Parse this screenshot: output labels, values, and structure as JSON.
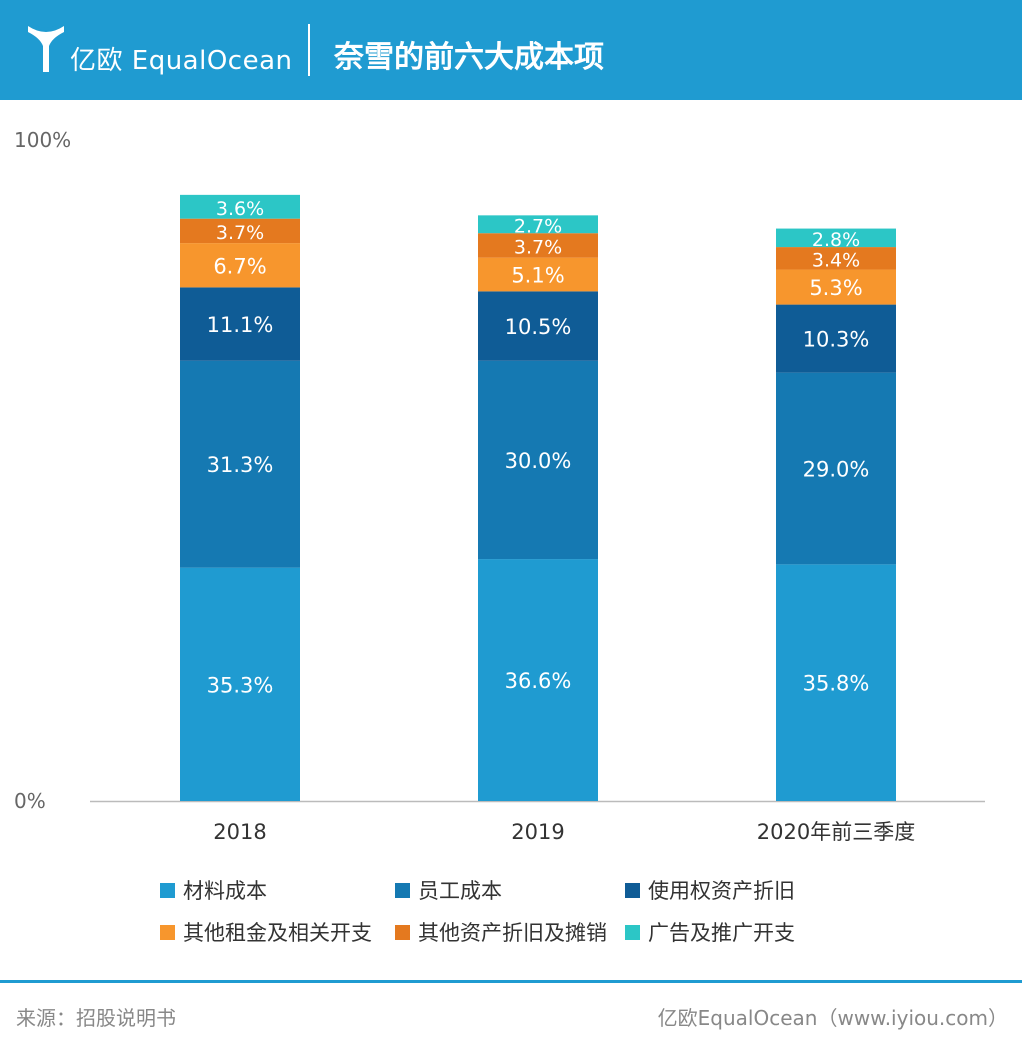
{
  "header": {
    "brand": "亿欧 EqualOcean",
    "title": "奈雪的前六大成本项"
  },
  "colors": {
    "header_bg": "#1f9bd1",
    "series": [
      "#1f9bd1",
      "#1579b2",
      "#0f5c96",
      "#f7962d",
      "#e4791f",
      "#2cc6c6"
    ]
  },
  "chart_data": {
    "type": "bar",
    "stacked": true,
    "categories": [
      "2018",
      "2019",
      "2020年前三季度"
    ],
    "ylim": [
      0,
      100
    ],
    "y_ticks": [
      "0%",
      "100%"
    ],
    "series": [
      {
        "name": "材料成本",
        "values": [
          35.3,
          36.6,
          35.8
        ],
        "labels": [
          "35.3%",
          "36.6%",
          "35.8%"
        ]
      },
      {
        "name": "员工成本",
        "values": [
          31.3,
          30.0,
          29.0
        ],
        "labels": [
          "31.3%",
          "30.0%",
          "29.0%"
        ]
      },
      {
        "name": "使用权资产折旧",
        "values": [
          11.1,
          10.5,
          10.3
        ],
        "labels": [
          "11.1%",
          "10.5%",
          "10.3%"
        ]
      },
      {
        "name": "其他租金及相关开支",
        "values": [
          6.7,
          5.1,
          5.3
        ],
        "labels": [
          "6.7%",
          "5.1%",
          "5.3%"
        ]
      },
      {
        "name": "其他资产折旧及摊销",
        "values": [
          3.7,
          3.7,
          3.4
        ],
        "labels": [
          "3.7%",
          "3.7%",
          "3.4%"
        ]
      },
      {
        "name": "广告及推广开支",
        "values": [
          3.6,
          2.7,
          2.8
        ],
        "labels": [
          "3.6%",
          "2.7%",
          "2.8%"
        ]
      }
    ],
    "legend_position": "bottom",
    "grid": false
  },
  "footer": {
    "source": "来源：招股说明书",
    "credit": "亿欧EqualOcean（www.iyiou.com）"
  }
}
